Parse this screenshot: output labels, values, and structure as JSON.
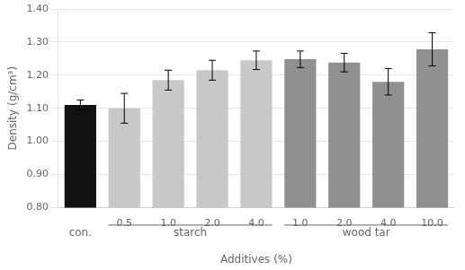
{
  "chart_data": {
    "type": "bar",
    "categories": [
      null,
      "0.5",
      "1.0",
      "2.0",
      "4.0",
      "1.0",
      "2.0",
      "4.0",
      "10.0"
    ],
    "values": [
      1.11,
      1.1,
      1.185,
      1.215,
      1.245,
      1.248,
      1.238,
      1.18,
      1.278
    ],
    "errors": [
      0.015,
      0.045,
      0.03,
      0.03,
      0.028,
      0.025,
      0.028,
      0.04,
      0.05
    ],
    "colors": [
      "#111111",
      "#c8c8c8",
      "#c8c8c8",
      "#c8c8c8",
      "#c8c8c8",
      "#909090",
      "#909090",
      "#909090",
      "#909090"
    ],
    "groups": [
      {
        "label": "con.",
        "count": 1
      },
      {
        "label": "starch",
        "count": 4
      },
      {
        "label": "wood tar",
        "count": 4
      }
    ],
    "xlabel": "Additives (%)",
    "ylabel": "Density (g/cm³)",
    "ylim": [
      0.8,
      1.4
    ],
    "yticks": [
      {
        "value": 0.8,
        "label": "0.80"
      },
      {
        "value": 0.9,
        "label": "0.90"
      },
      {
        "value": 1.0,
        "label": "1.00"
      },
      {
        "value": 1.1,
        "label": "1.10"
      },
      {
        "value": 1.2,
        "label": "1.20"
      },
      {
        "value": 1.3,
        "label": "1.30"
      },
      {
        "value": 1.4,
        "label": "1.40"
      }
    ],
    "grid": true
  }
}
